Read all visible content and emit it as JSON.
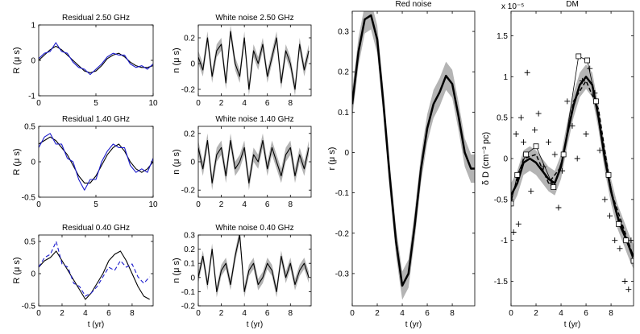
{
  "figure_title": "Pulsar timing residual decomposition",
  "colors": {
    "observed": "#1a1acc",
    "model": "#000000",
    "band": "#b4b4b4",
    "axis": "#000000",
    "background": "#ffffff"
  },
  "chart_data": [
    {
      "id": "residual_2_50",
      "type": "line",
      "title": "Residual 2.50 GHz",
      "xlabel": "",
      "ylabel": "R (μ s)",
      "xlim": [
        0,
        10
      ],
      "ylim": [
        -1,
        1
      ],
      "xticks": [
        {
          "v": 0,
          "t": "0"
        },
        {
          "v": 5,
          "t": "5"
        },
        {
          "v": 10,
          "t": "10"
        }
      ],
      "yticks": [
        {
          "v": -1,
          "t": "-1"
        },
        {
          "v": 0,
          "t": "0"
        },
        {
          "v": 1,
          "t": "1"
        }
      ],
      "series": [
        {
          "name": "model",
          "style": "model",
          "x": [
            0,
            0.5,
            1,
            1.5,
            2,
            2.5,
            3,
            3.5,
            4,
            4.5,
            5,
            5.5,
            6,
            6.5,
            7,
            7.5,
            8,
            8.5,
            9,
            9.5,
            10
          ],
          "values": [
            0.0,
            0.15,
            0.3,
            0.4,
            0.3,
            0.15,
            0.0,
            -0.15,
            -0.3,
            -0.35,
            -0.3,
            -0.15,
            0.05,
            0.15,
            0.2,
            0.1,
            -0.05,
            -0.15,
            -0.2,
            -0.2,
            -0.15
          ]
        },
        {
          "name": "observed",
          "style": "observed",
          "x": [
            0,
            0.5,
            1,
            1.5,
            2,
            2.5,
            3,
            3.5,
            4,
            4.5,
            5,
            5.5,
            6,
            6.5,
            7,
            7.5,
            8,
            8.5,
            9,
            9.5,
            10
          ],
          "values": [
            0.05,
            0.2,
            0.25,
            0.5,
            0.25,
            0.2,
            -0.05,
            -0.2,
            -0.25,
            -0.4,
            -0.25,
            -0.1,
            0.1,
            0.2,
            0.15,
            0.15,
            -0.1,
            -0.2,
            -0.15,
            -0.25,
            -0.1
          ]
        }
      ]
    },
    {
      "id": "white_2_50",
      "type": "line",
      "title": "White noise 2.50 GHz",
      "xlabel": "",
      "ylabel": "n (μ s)",
      "xlim": [
        0,
        9.8
      ],
      "ylim": [
        -0.25,
        0.3
      ],
      "xticks": [
        {
          "v": 0,
          "t": "0"
        },
        {
          "v": 2,
          "t": "2"
        },
        {
          "v": 4,
          "t": "4"
        },
        {
          "v": 6,
          "t": "6"
        },
        {
          "v": 8,
          "t": "8"
        }
      ],
      "yticks": [
        {
          "v": -0.2,
          "t": "-0.2"
        },
        {
          "v": 0,
          "t": "0"
        },
        {
          "v": 0.2,
          "t": "0.2"
        }
      ],
      "series": [
        {
          "name": "white noise",
          "style": "model",
          "band": 0.05,
          "x": [
            0,
            0.4,
            0.8,
            1.2,
            1.6,
            2,
            2.4,
            2.8,
            3.2,
            3.6,
            4,
            4.4,
            4.8,
            5.2,
            5.6,
            6,
            6.4,
            6.8,
            7.2,
            7.6,
            8,
            8.4,
            8.8,
            9.2,
            9.6
          ],
          "values": [
            0.05,
            -0.05,
            0.2,
            -0.1,
            0.1,
            0.15,
            -0.15,
            0.25,
            0.0,
            -0.1,
            0.2,
            -0.2,
            0.1,
            0.0,
            0.15,
            -0.1,
            0.05,
            0.2,
            -0.15,
            0.1,
            0.0,
            -0.2,
            0.15,
            -0.05,
            0.1
          ]
        }
      ]
    },
    {
      "id": "residual_1_40",
      "type": "line",
      "title": "Residual 1.40 GHz",
      "xlabel": "",
      "ylabel": "R (μ s)",
      "xlim": [
        0,
        10
      ],
      "ylim": [
        -0.5,
        0.5
      ],
      "xticks": [
        {
          "v": 0,
          "t": "0"
        },
        {
          "v": 5,
          "t": "5"
        },
        {
          "v": 10,
          "t": "10"
        }
      ],
      "yticks": [
        {
          "v": -0.5,
          "t": "-0.5"
        },
        {
          "v": 0,
          "t": "0"
        },
        {
          "v": 0.5,
          "t": "0.5"
        }
      ],
      "series": [
        {
          "name": "model",
          "style": "model",
          "x": [
            0,
            0.5,
            1,
            1.5,
            2,
            2.5,
            3,
            3.5,
            4,
            4.5,
            5,
            5.5,
            6,
            6.5,
            7,
            7.5,
            8,
            8.5,
            9,
            9.5,
            10
          ],
          "values": [
            0.25,
            0.3,
            0.35,
            0.3,
            0.2,
            0.1,
            -0.05,
            -0.2,
            -0.3,
            -0.3,
            -0.2,
            -0.05,
            0.1,
            0.2,
            0.25,
            0.15,
            0.0,
            -0.1,
            -0.15,
            -0.1,
            0.0
          ]
        },
        {
          "name": "observed",
          "style": "observed",
          "x": [
            0,
            0.5,
            1,
            1.5,
            2,
            2.5,
            3,
            3.5,
            4,
            4.5,
            5,
            5.5,
            6,
            6.5,
            7,
            7.5,
            8,
            8.5,
            9,
            9.5,
            10
          ],
          "values": [
            0.2,
            0.35,
            0.4,
            0.25,
            0.25,
            0.05,
            0.0,
            -0.25,
            -0.4,
            -0.25,
            -0.25,
            0.0,
            0.15,
            0.25,
            0.2,
            0.2,
            -0.05,
            -0.15,
            -0.1,
            -0.15,
            0.05
          ]
        }
      ]
    },
    {
      "id": "white_1_40",
      "type": "line",
      "title": "White noise 1.40 GHz",
      "xlabel": "",
      "ylabel": "n (μ s)",
      "xlim": [
        0,
        9.8
      ],
      "ylim": [
        -0.25,
        0.25
      ],
      "xticks": [
        {
          "v": 0,
          "t": "0"
        },
        {
          "v": 2,
          "t": "2"
        },
        {
          "v": 4,
          "t": "4"
        },
        {
          "v": 6,
          "t": "6"
        },
        {
          "v": 8,
          "t": "8"
        }
      ],
      "yticks": [
        {
          "v": -0.2,
          "t": "-0.2"
        },
        {
          "v": 0,
          "t": "0"
        },
        {
          "v": 0.2,
          "t": "0.2"
        }
      ],
      "series": [
        {
          "name": "white noise",
          "style": "model",
          "band": 0.05,
          "x": [
            0,
            0.4,
            0.8,
            1.2,
            1.6,
            2,
            2.4,
            2.8,
            3.2,
            3.6,
            4,
            4.4,
            4.8,
            5.2,
            5.6,
            6,
            6.4,
            6.8,
            7.2,
            7.6,
            8,
            8.4,
            8.8,
            9.2,
            9.6
          ],
          "values": [
            0.1,
            -0.05,
            0.15,
            -0.15,
            0.05,
            0.1,
            -0.1,
            0.15,
            -0.05,
            0.0,
            0.1,
            -0.15,
            0.05,
            0.0,
            0.15,
            -0.05,
            0.1,
            0.0,
            -0.1,
            0.05,
            0.1,
            -0.1,
            0.05,
            -0.05,
            0.1
          ]
        }
      ]
    },
    {
      "id": "residual_0_40",
      "type": "line",
      "title": "Residual 0.40 GHz",
      "xlabel": "t (yr)",
      "ylabel": "R (μ s)",
      "xlim": [
        0,
        9.8
      ],
      "ylim": [
        -0.5,
        0.6
      ],
      "xticks": [
        {
          "v": 0,
          "t": "0"
        },
        {
          "v": 2,
          "t": "2"
        },
        {
          "v": 4,
          "t": "4"
        },
        {
          "v": 6,
          "t": "6"
        },
        {
          "v": 8,
          "t": "8"
        }
      ],
      "yticks": [
        {
          "v": -0.5,
          "t": "-0.5"
        },
        {
          "v": 0,
          "t": "0"
        },
        {
          "v": 0.5,
          "t": "0.5"
        }
      ],
      "series": [
        {
          "name": "model",
          "style": "model",
          "x": [
            0,
            0.5,
            1,
            1.5,
            2,
            2.5,
            3,
            3.5,
            4,
            4.5,
            5,
            5.5,
            6,
            6.5,
            7,
            7.5,
            8,
            8.5,
            9,
            9.5
          ],
          "values": [
            0.1,
            0.2,
            0.25,
            0.35,
            0.2,
            0.05,
            -0.1,
            -0.25,
            -0.4,
            -0.3,
            -0.15,
            0.0,
            0.2,
            0.3,
            0.35,
            0.2,
            0.0,
            -0.2,
            -0.35,
            -0.4
          ]
        },
        {
          "name": "observed",
          "style": "observed",
          "dashed": true,
          "x": [
            0,
            0.5,
            1,
            1.5,
            2,
            2.5,
            3,
            3.5,
            4,
            4.5,
            5,
            5.5,
            6,
            6.5,
            7,
            7.5,
            8,
            8.5,
            9,
            9.5
          ],
          "values": [
            0.1,
            0.25,
            0.3,
            0.5,
            0.15,
            0.1,
            -0.15,
            -0.2,
            -0.35,
            -0.3,
            -0.2,
            -0.05,
            0.1,
            0.05,
            0.2,
            0.1,
            0.15,
            -0.05,
            -0.15,
            -0.05
          ]
        }
      ]
    },
    {
      "id": "white_0_40",
      "type": "line",
      "title": "White noise 0.40 GHz",
      "xlabel": "t (yr)",
      "ylabel": "n (μ s)",
      "xlim": [
        0,
        9.8
      ],
      "ylim": [
        -0.2,
        0.3
      ],
      "xticks": [
        {
          "v": 0,
          "t": "0"
        },
        {
          "v": 2,
          "t": "2"
        },
        {
          "v": 4,
          "t": "4"
        },
        {
          "v": 6,
          "t": "6"
        },
        {
          "v": 8,
          "t": "8"
        }
      ],
      "yticks": [
        {
          "v": -0.2,
          "t": "-0.2"
        },
        {
          "v": -0.1,
          "t": "-0.1"
        },
        {
          "v": 0,
          "t": "0"
        },
        {
          "v": 0.1,
          "t": "0.1"
        },
        {
          "v": 0.2,
          "t": "0.2"
        },
        {
          "v": 0.3,
          "t": "0.3"
        }
      ],
      "series": [
        {
          "name": "white noise",
          "style": "model",
          "band": 0.04,
          "x": [
            0,
            0.4,
            0.8,
            1.2,
            1.6,
            2,
            2.4,
            2.8,
            3.2,
            3.6,
            4,
            4.4,
            4.8,
            5.2,
            5.6,
            6,
            6.4,
            6.8,
            7.2,
            7.6,
            8,
            8.4,
            8.8,
            9.2,
            9.6
          ],
          "values": [
            0.0,
            0.15,
            -0.05,
            0.2,
            -0.1,
            0.05,
            0.1,
            -0.05,
            0.15,
            0.3,
            -0.1,
            0.05,
            0.1,
            -0.05,
            0.0,
            0.1,
            0.05,
            -0.1,
            0.15,
            0.0,
            0.1,
            -0.05,
            0.05,
            0.1,
            0.0
          ]
        }
      ]
    },
    {
      "id": "red_noise",
      "type": "line",
      "title": "Red noise",
      "xlabel": "t (yr)",
      "ylabel": "r (μ s)",
      "xlim": [
        0,
        9.8
      ],
      "ylim": [
        -0.38,
        0.35
      ],
      "xticks": [
        {
          "v": 0,
          "t": "0"
        },
        {
          "v": 2,
          "t": "2"
        },
        {
          "v": 4,
          "t": "4"
        },
        {
          "v": 6,
          "t": "6"
        },
        {
          "v": 8,
          "t": "8"
        }
      ],
      "yticks": [
        {
          "v": -0.3,
          "t": "-0.3"
        },
        {
          "v": -0.2,
          "t": "-0.2"
        },
        {
          "v": -0.1,
          "t": "-0.1"
        },
        {
          "v": 0,
          "t": "0"
        },
        {
          "v": 0.1,
          "t": "0.1"
        },
        {
          "v": 0.2,
          "t": "0.2"
        },
        {
          "v": 0.3,
          "t": "0.3"
        }
      ],
      "series": [
        {
          "name": "red noise",
          "style": "model",
          "band": 0.035,
          "width": 2.5,
          "x": [
            0,
            0.5,
            1,
            1.5,
            2,
            2.5,
            3,
            3.5,
            4,
            4.5,
            5,
            5.5,
            6,
            6.5,
            7,
            7.5,
            8,
            8.5,
            9,
            9.5,
            9.8
          ],
          "values": [
            0.12,
            0.25,
            0.33,
            0.34,
            0.28,
            0.12,
            -0.06,
            -0.22,
            -0.33,
            -0.3,
            -0.18,
            -0.04,
            0.06,
            0.12,
            0.15,
            0.19,
            0.17,
            0.09,
            0.0,
            -0.04,
            -0.04
          ]
        }
      ]
    },
    {
      "id": "dm",
      "type": "scatter",
      "title": "DM",
      "xlabel": "t (yr)",
      "ylabel": "δ D (cm⁻³ pc)",
      "exponent_label": "x 10⁻⁵",
      "xlim": [
        0,
        9.8
      ],
      "ylim": [
        -1.8,
        1.8
      ],
      "xticks": [
        {
          "v": 0,
          "t": "0"
        },
        {
          "v": 2,
          "t": "2"
        },
        {
          "v": 4,
          "t": "4"
        },
        {
          "v": 6,
          "t": "6"
        },
        {
          "v": 8,
          "t": "8"
        }
      ],
      "yticks": [
        {
          "v": -1.5,
          "t": "-1.5"
        },
        {
          "v": -1,
          "t": "-1"
        },
        {
          "v": -0.5,
          "t": "-0.5"
        },
        {
          "v": 0,
          "t": "0"
        },
        {
          "v": 0.5,
          "t": "0.5"
        },
        {
          "v": 1,
          "t": "1"
        },
        {
          "v": 1.5,
          "t": "1.5"
        }
      ],
      "series": [
        {
          "name": "DM model",
          "style": "model",
          "band": 0.15,
          "width": 2.5,
          "x": [
            0,
            0.5,
            1,
            1.5,
            2,
            2.5,
            3,
            3.5,
            4,
            4.5,
            5,
            5.5,
            6,
            6.5,
            7,
            7.5,
            8,
            8.5,
            9,
            9.5,
            9.8
          ],
          "values": [
            -0.45,
            -0.3,
            -0.05,
            0.0,
            -0.05,
            -0.15,
            -0.25,
            -0.3,
            -0.1,
            0.3,
            0.65,
            0.9,
            1.0,
            0.9,
            0.5,
            0.0,
            -0.4,
            -0.7,
            -0.9,
            -1.1,
            -1.2
          ]
        },
        {
          "name": "DM dashed",
          "style": "model",
          "dashed": true,
          "width": 1.5,
          "x": [
            0,
            1,
            2,
            3,
            4,
            5,
            6,
            7,
            8,
            9,
            9.8
          ],
          "values": [
            -0.5,
            0.0,
            0.05,
            -0.3,
            -0.1,
            0.7,
            0.95,
            0.6,
            -0.4,
            -0.85,
            -1.2
          ]
        },
        {
          "name": "DM sparse",
          "style": "model",
          "width": 0.8,
          "markers": "square",
          "x": [
            0,
            0.5,
            1.2,
            2.0,
            3.4,
            4.2,
            5.4,
            6.1,
            6.8,
            7.8,
            8.6,
            9.2,
            9.8
          ],
          "values": [
            -0.55,
            -0.2,
            0.05,
            0.15,
            -0.35,
            0.05,
            1.25,
            1.2,
            0.7,
            -0.2,
            -0.8,
            -1.0,
            -1.25
          ]
        },
        {
          "name": "DM samples",
          "style": "points",
          "markers": "plus",
          "x": [
            0.2,
            0.4,
            0.6,
            0.8,
            1.0,
            1.3,
            1.6,
            1.9,
            2.2,
            2.6,
            3.0,
            3.2,
            3.5,
            3.8,
            4.1,
            4.5,
            4.9,
            5.3,
            5.7,
            6.0,
            6.3,
            6.7,
            7.1,
            7.5,
            7.9,
            8.3,
            8.7,
            9.1,
            9.4,
            9.6
          ],
          "values": [
            -0.9,
            0.3,
            -0.8,
            0.5,
            0.2,
            1.05,
            -0.4,
            0.35,
            0.55,
            -0.1,
            0.2,
            -0.3,
            0.05,
            -0.6,
            -0.15,
            0.7,
            0.4,
            0.0,
            0.95,
            0.3,
            1.1,
            0.8,
            0.1,
            -0.5,
            -0.7,
            -1.0,
            -1.1,
            -1.5,
            -1.6,
            -1.0
          ]
        }
      ]
    }
  ]
}
